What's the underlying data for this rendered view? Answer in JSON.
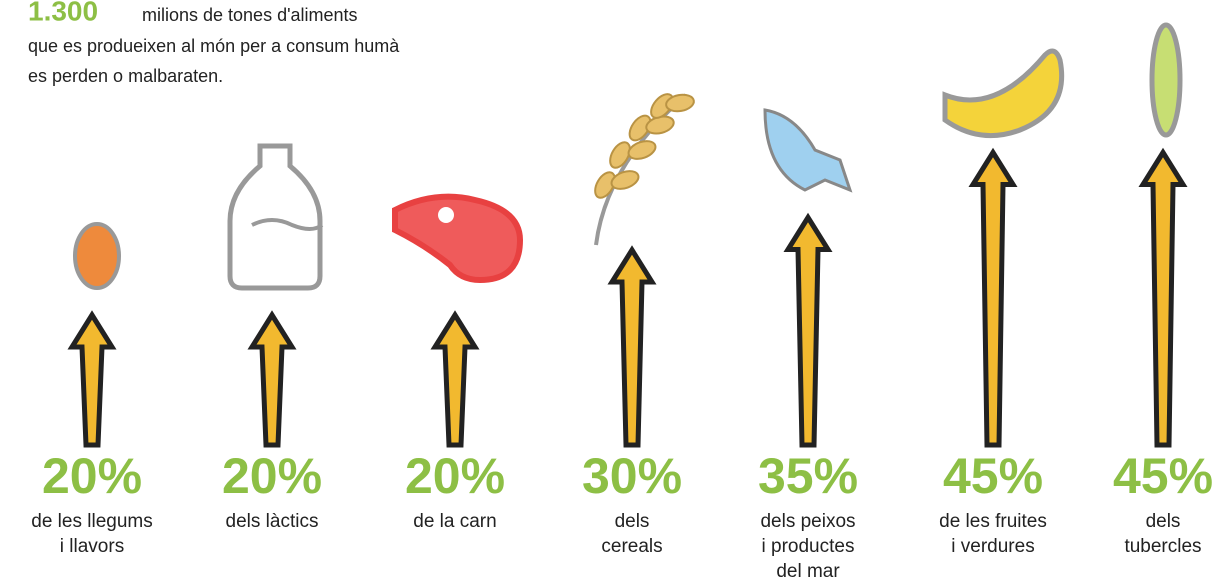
{
  "chart_data": {
    "type": "arrow",
    "title": {
      "highlight": "1.300",
      "lines": [
        "milions de tones d'aliments",
        "que es produeixen al món per a consum humà",
        "es perden o malbaraten."
      ]
    },
    "categories": [
      [
        "de les llegums",
        "i llavors"
      ],
      [
        "dels làctics"
      ],
      [
        "de la carn"
      ],
      [
        "dels",
        "cereals"
      ],
      [
        "dels peixos",
        "i productes",
        "del mar"
      ],
      [
        "de les fruites",
        "i verdures"
      ],
      [
        "dels",
        "tubercles"
      ]
    ],
    "values": [
      20,
      20,
      20,
      30,
      35,
      45,
      45
    ],
    "value_labels": [
      "20%",
      "20%",
      "20%",
      "30%",
      "35%",
      "45%",
      "45%"
    ],
    "color": "#f2b92f",
    "label_color": "#8dbf45"
  }
}
